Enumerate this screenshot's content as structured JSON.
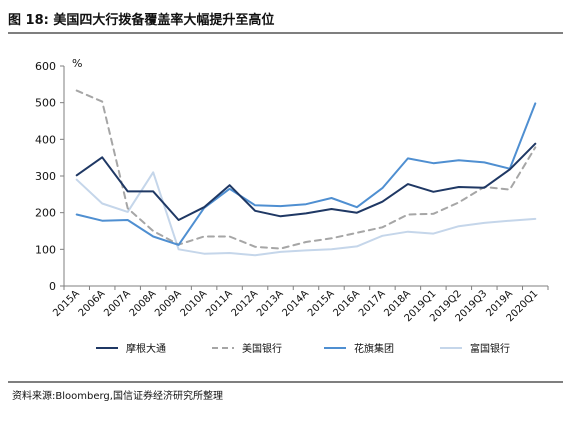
{
  "header": {
    "title": "图 18:  美国四大行拨备覆盖率大幅提升至高位"
  },
  "footer": {
    "source": "资料来源:Bloomberg,国信证券经济研究所整理"
  },
  "chart_data": {
    "type": "line",
    "title": "",
    "xlabel": "",
    "ylabel": "%",
    "ylim": [
      0,
      600
    ],
    "yticks": [
      "0",
      "100",
      "200",
      "300",
      "400",
      "500",
      "600"
    ],
    "grid": false,
    "legend_position": "bottom",
    "categories": [
      "2015A",
      "2006A",
      "2007A",
      "2008A",
      "2009A",
      "2010A",
      "2011A",
      "2012A",
      "2013A",
      "2014A",
      "2015A",
      "2016A",
      "2017A",
      "2018A",
      "2019Q1",
      "2019Q2",
      "2019Q3",
      "2019A",
      "2020Q1"
    ],
    "series": [
      {
        "name": "摩根大通",
        "color": "#1f3864",
        "dash": "solid",
        "values": [
          302,
          351,
          258,
          258,
          180,
          215,
          275,
          205,
          190,
          198,
          210,
          200,
          230,
          278,
          257,
          270,
          268,
          318,
          388
        ]
      },
      {
        "name": "美国银行",
        "color": "#a6a6a6",
        "dash": "dashed",
        "values": [
          533,
          503,
          212,
          150,
          113,
          135,
          135,
          107,
          102,
          120,
          130,
          145,
          160,
          195,
          197,
          228,
          270,
          263,
          378
        ]
      },
      {
        "name": "花旗集团",
        "color": "#4f8fd1",
        "dash": "solid",
        "values": [
          195,
          178,
          180,
          135,
          112,
          213,
          265,
          220,
          218,
          223,
          240,
          215,
          267,
          348,
          335,
          343,
          337,
          320,
          498
        ]
      },
      {
        "name": "富国银行",
        "color": "#c5d6ea",
        "dash": "solid",
        "values": [
          290,
          225,
          202,
          310,
          100,
          88,
          90,
          84,
          93,
          97,
          100,
          108,
          137,
          148,
          143,
          163,
          172,
          178,
          183
        ]
      }
    ]
  }
}
